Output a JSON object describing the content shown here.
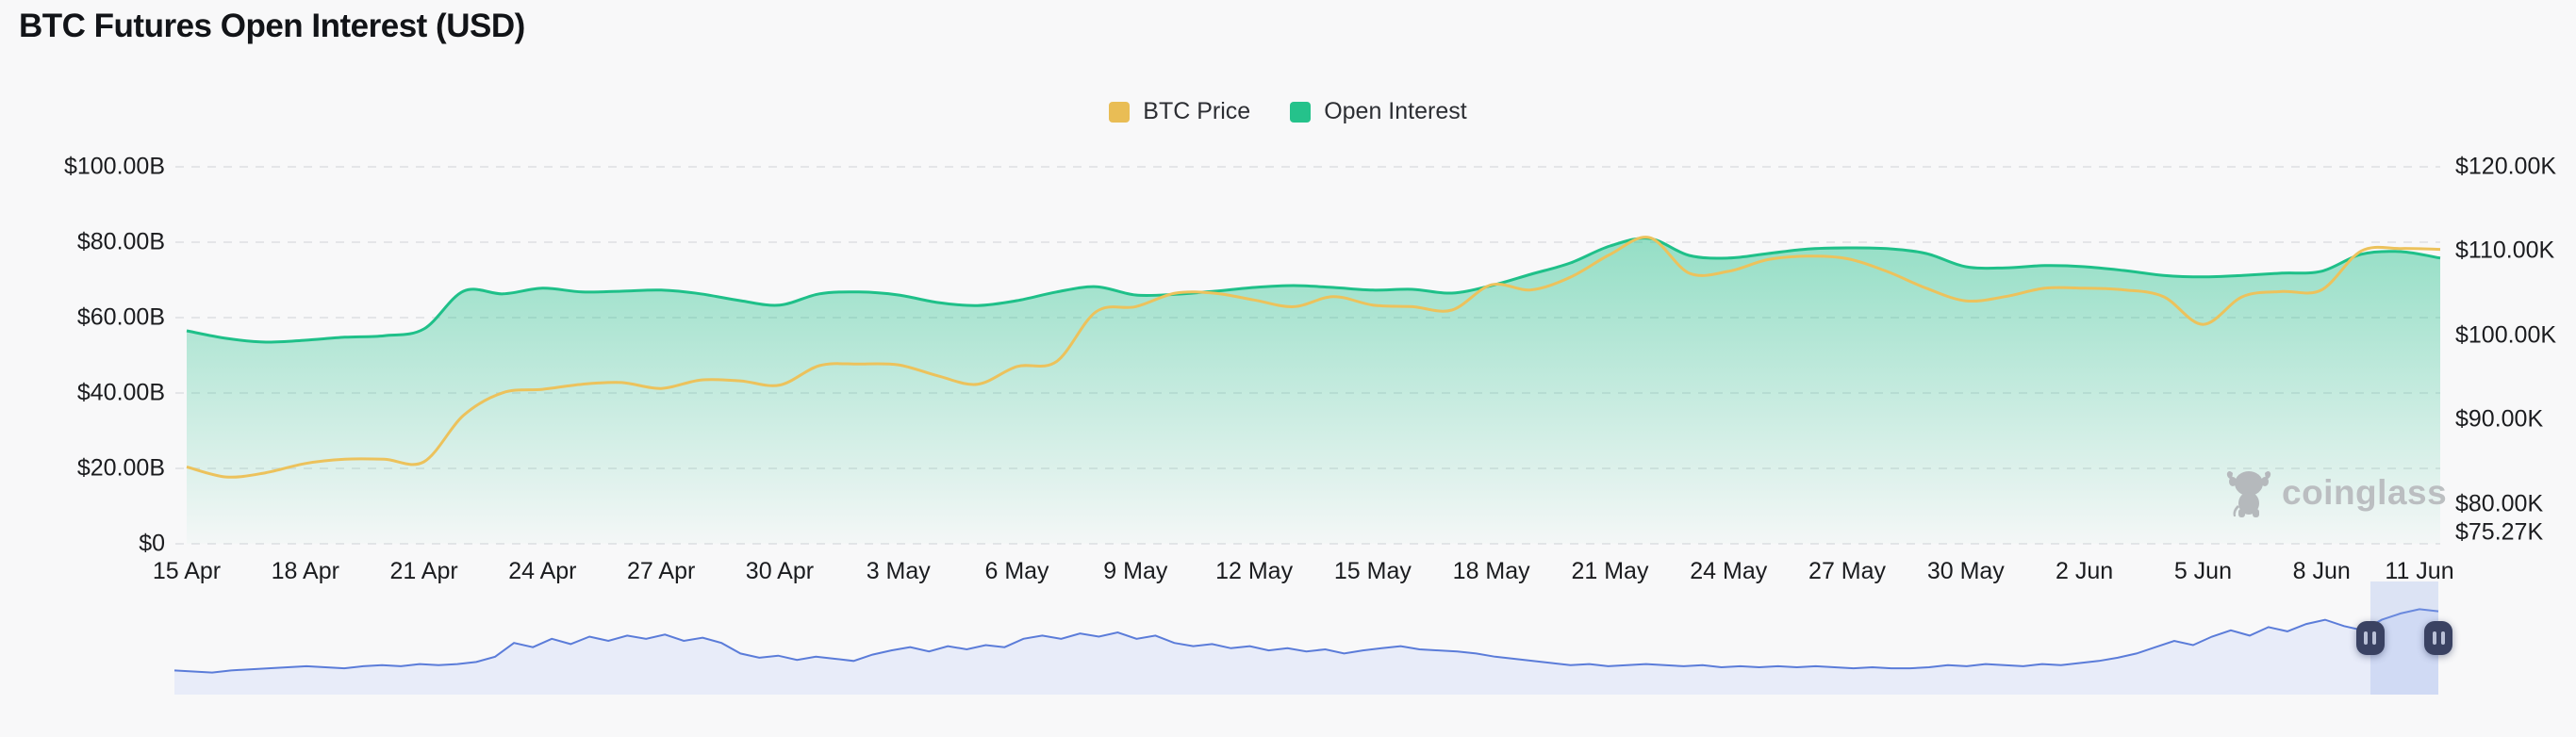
{
  "title": "BTC Futures Open Interest (USD)",
  "legend": {
    "items": [
      {
        "label": "BTC Price",
        "color": "#e9bd55"
      },
      {
        "label": "Open Interest",
        "color": "#25c28b"
      }
    ]
  },
  "watermark": {
    "label": "coinglass"
  },
  "colors": {
    "background": "#f8f8f9",
    "grid": "#e4e5e8",
    "oi_line": "#1fc089",
    "oi_fill_top": "rgba(31,192,137,0.46)",
    "oi_fill_bottom": "rgba(31,192,137,0.02)",
    "price_line": "#ecc25c",
    "nav_line": "#5b7cd9",
    "nav_fill": "#e8ecf9",
    "nav_band": "rgba(148,171,235,0.28)",
    "handle": "#3a4262",
    "axis_text": "#1b1c1f"
  },
  "chart_data": {
    "type": "area+line",
    "title": "BTC Futures Open Interest (USD)",
    "grid": "horizontal-dashed",
    "legend_position": "top-center",
    "n_points": 58,
    "x_tick_every": 3,
    "x_tick_labels": [
      "15 Apr",
      "18 Apr",
      "21 Apr",
      "24 Apr",
      "27 Apr",
      "30 Apr",
      "3 May",
      "6 May",
      "9 May",
      "12 May",
      "15 May",
      "18 May",
      "21 May",
      "24 May",
      "27 May",
      "30 May",
      "2 Jun",
      "5 Jun",
      "8 Jun",
      "11 Jun"
    ],
    "left_axis": {
      "min": 0,
      "max": 100,
      "unit": "B USD",
      "ticks": [
        "$100.00B",
        "$80.00B",
        "$60.00B",
        "$40.00B",
        "$20.00B",
        "$0"
      ],
      "tick_values": [
        100,
        80,
        60,
        40,
        20,
        0
      ]
    },
    "right_axis": {
      "min": 75.27,
      "max": 120,
      "unit": "K USD",
      "ticks": [
        "$120.00K",
        "$110.00K",
        "$100.00K",
        "$90.00K",
        "$80.00K",
        "$75.27K"
      ],
      "tick_values": [
        120,
        110,
        100,
        90,
        80,
        75.27
      ]
    },
    "series": [
      {
        "name": "Open Interest",
        "axis": "left",
        "kind": "area",
        "color": "#1fc089",
        "values": [
          56.5,
          54.5,
          53.5,
          54.0,
          54.8,
          55.2,
          57.0,
          67.0,
          66.3,
          67.8,
          66.8,
          67.0,
          67.3,
          66.3,
          64.5,
          63.3,
          66.3,
          66.8,
          66.0,
          64.0,
          63.2,
          64.5,
          66.8,
          68.2,
          66.0,
          66.2,
          67.0,
          68.0,
          68.5,
          68.0,
          67.3,
          67.5,
          66.5,
          68.5,
          71.5,
          74.5,
          79.0,
          81.0,
          76.5,
          75.8,
          77.0,
          78.2,
          78.5,
          78.3,
          77.0,
          73.5,
          73.2,
          73.8,
          73.5,
          72.5,
          71.2,
          70.8,
          71.2,
          71.8,
          72.3,
          76.8,
          77.5,
          75.8
        ]
      },
      {
        "name": "BTC Price",
        "axis": "right",
        "kind": "line",
        "color": "#ecc25c",
        "values": [
          84.4,
          83.2,
          83.7,
          84.8,
          85.3,
          85.3,
          85.0,
          90.5,
          93.2,
          93.6,
          94.2,
          94.4,
          93.7,
          94.7,
          94.6,
          94.1,
          96.4,
          96.6,
          96.5,
          95.2,
          94.2,
          96.3,
          96.9,
          102.8,
          103.4,
          105.0,
          105.0,
          104.2,
          103.4,
          104.6,
          103.6,
          103.4,
          103.0,
          106.0,
          105.4,
          106.9,
          109.6,
          111.6,
          107.4,
          107.6,
          109.0,
          109.4,
          109.1,
          107.6,
          105.6,
          104.1,
          104.6,
          105.6,
          105.6,
          105.4,
          104.6,
          101.3,
          104.6,
          105.2,
          105.4,
          110.0,
          110.3,
          110.2
        ]
      }
    ],
    "navigator": {
      "description": "full-history BTC price brush",
      "selection": [
        0.97,
        1.0
      ],
      "values": [
        0.22,
        0.21,
        0.2,
        0.22,
        0.23,
        0.24,
        0.25,
        0.26,
        0.25,
        0.24,
        0.26,
        0.27,
        0.26,
        0.28,
        0.27,
        0.28,
        0.3,
        0.35,
        0.48,
        0.44,
        0.52,
        0.47,
        0.54,
        0.5,
        0.55,
        0.52,
        0.56,
        0.5,
        0.53,
        0.48,
        0.38,
        0.34,
        0.36,
        0.32,
        0.35,
        0.33,
        0.31,
        0.37,
        0.41,
        0.44,
        0.4,
        0.45,
        0.42,
        0.46,
        0.44,
        0.52,
        0.55,
        0.52,
        0.57,
        0.54,
        0.58,
        0.52,
        0.55,
        0.48,
        0.45,
        0.47,
        0.43,
        0.45,
        0.41,
        0.43,
        0.4,
        0.42,
        0.38,
        0.41,
        0.43,
        0.45,
        0.42,
        0.41,
        0.4,
        0.38,
        0.35,
        0.33,
        0.31,
        0.29,
        0.27,
        0.28,
        0.26,
        0.27,
        0.28,
        0.27,
        0.26,
        0.27,
        0.25,
        0.26,
        0.25,
        0.26,
        0.25,
        0.26,
        0.25,
        0.24,
        0.25,
        0.24,
        0.24,
        0.25,
        0.27,
        0.26,
        0.28,
        0.27,
        0.26,
        0.28,
        0.27,
        0.29,
        0.31,
        0.34,
        0.38,
        0.44,
        0.5,
        0.46,
        0.54,
        0.6,
        0.55,
        0.63,
        0.59,
        0.66,
        0.7,
        0.64,
        0.6,
        0.7,
        0.76,
        0.8,
        0.78
      ]
    }
  }
}
